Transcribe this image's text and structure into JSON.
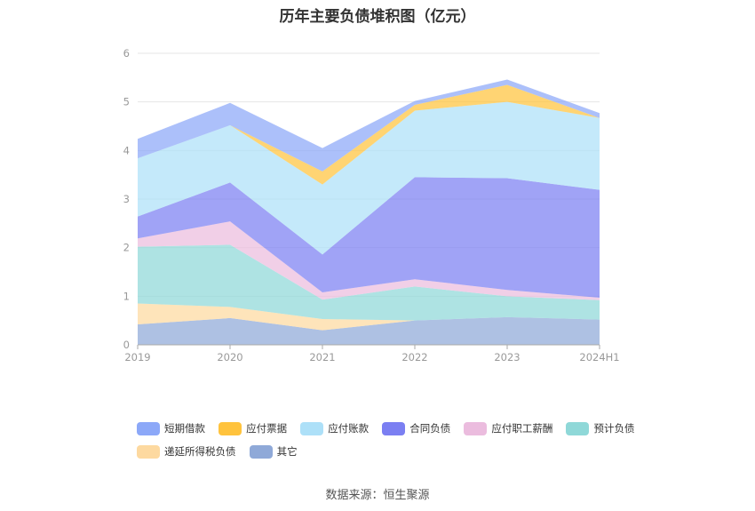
{
  "chart_data": {
    "type": "area",
    "stacked": true,
    "title": "历年主要负债堆积图（亿元）",
    "categories": [
      "2019",
      "2020",
      "2021",
      "2022",
      "2023",
      "2024H1"
    ],
    "ylim": [
      0,
      6
    ],
    "yticks": [
      "0",
      "1",
      "2",
      "3",
      "4",
      "5",
      "6"
    ],
    "grid": true,
    "legend_position": "bottom",
    "series": [
      {
        "name": "其它",
        "color": "#8fa9d8",
        "values": [
          0.42,
          0.55,
          0.3,
          0.5,
          0.57,
          0.52
        ]
      },
      {
        "name": "递延所得税负债",
        "color": "#fdd9a0",
        "values": [
          0.43,
          0.23,
          0.23,
          0.0,
          0.0,
          0.0
        ]
      },
      {
        "name": "预计负债",
        "color": "#8fd8d8",
        "values": [
          1.17,
          1.28,
          0.4,
          0.7,
          0.43,
          0.4
        ]
      },
      {
        "name": "应付职工薪酬",
        "color": "#ebbcde",
        "values": [
          0.17,
          0.48,
          0.15,
          0.15,
          0.13,
          0.05
        ]
      },
      {
        "name": "合同负债",
        "color": "#7b7ff2",
        "values": [
          0.45,
          0.8,
          0.78,
          2.1,
          2.3,
          2.22
        ]
      },
      {
        "name": "应付账款",
        "color": "#ade0f8",
        "values": [
          1.2,
          1.18,
          1.44,
          1.37,
          1.57,
          1.48
        ]
      },
      {
        "name": "应付票据",
        "color": "#ffc33d",
        "values": [
          0.0,
          0.0,
          0.27,
          0.12,
          0.35,
          0.0
        ]
      },
      {
        "name": "短期借款",
        "color": "#8ca8f8",
        "values": [
          0.4,
          0.46,
          0.48,
          0.08,
          0.11,
          0.1
        ]
      }
    ]
  },
  "legend": {
    "items": [
      {
        "label": "短期借款",
        "color": "#8ca8f8"
      },
      {
        "label": "应付票据",
        "color": "#ffc33d"
      },
      {
        "label": "应付账款",
        "color": "#ade0f8"
      },
      {
        "label": "合同负债",
        "color": "#7b7ff2"
      },
      {
        "label": "应付职工薪酬",
        "color": "#ebbcde"
      },
      {
        "label": "预计负债",
        "color": "#8fd8d8"
      },
      {
        "label": "递延所得税负债",
        "color": "#fdd9a0"
      },
      {
        "label": "其它",
        "color": "#8fa9d8"
      }
    ]
  },
  "footer": {
    "source": "数据来源：恒生聚源"
  }
}
